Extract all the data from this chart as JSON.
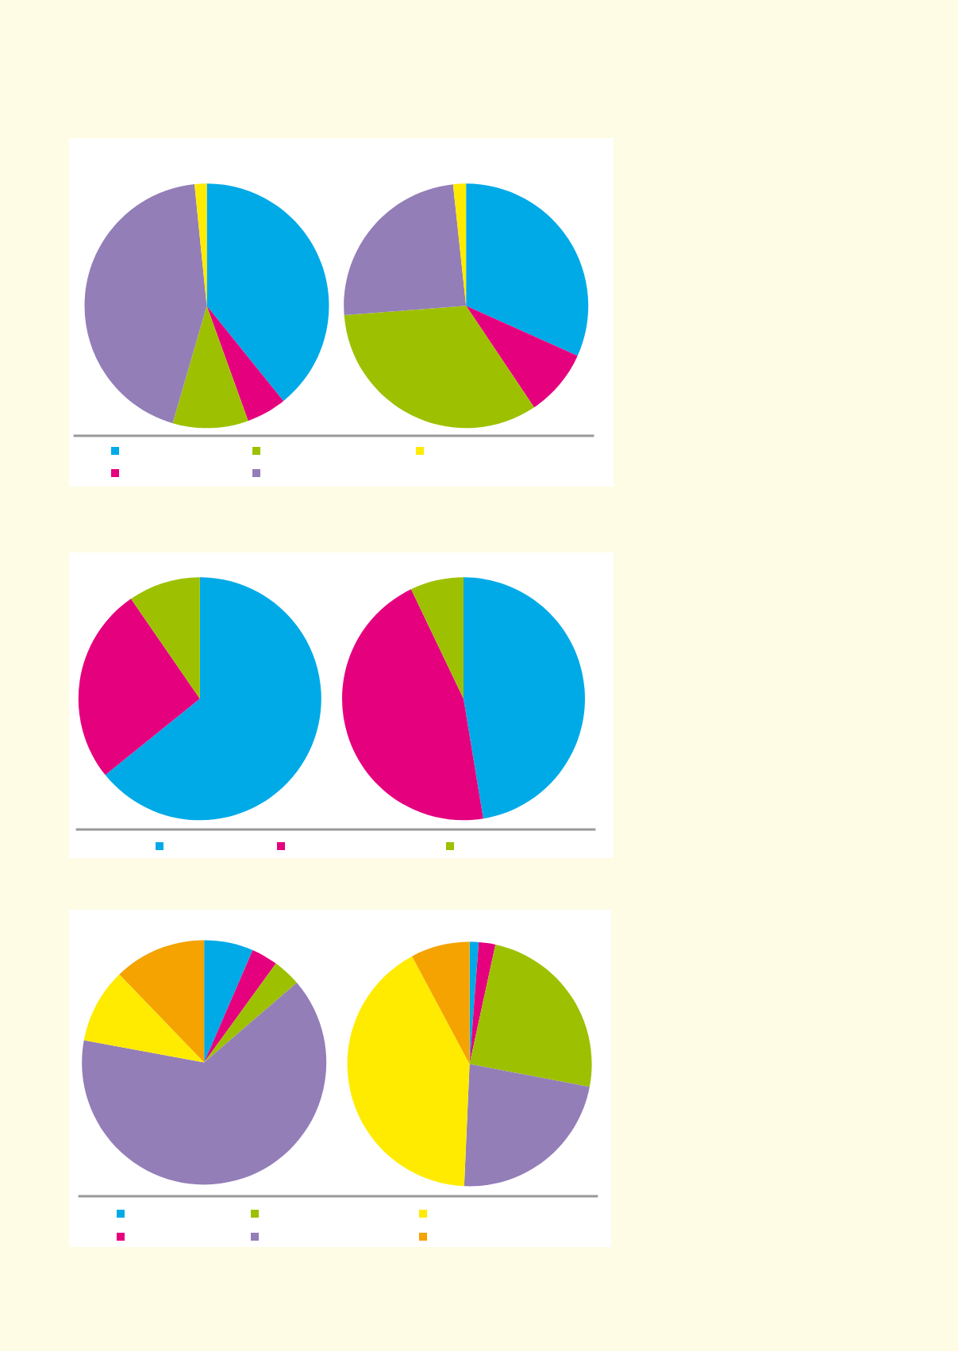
{
  "chart_data": [
    {
      "type": "pie",
      "categories": [
        null,
        null,
        null,
        null,
        null
      ],
      "values": [
        39.2,
        5.3,
        10.0,
        43.9,
        1.6
      ],
      "colors": [
        "#00aae7",
        "#e5007e",
        "#9dc100",
        "#937eb8",
        "#ffeb00"
      ]
    },
    {
      "type": "pie",
      "categories": [
        null,
        null,
        null,
        null,
        null
      ],
      "values": [
        31.7,
        8.9,
        33.2,
        24.5,
        1.7
      ],
      "colors": [
        "#00aae7",
        "#e5007e",
        "#9dc100",
        "#937eb8",
        "#ffeb00"
      ]
    },
    {
      "type": "pie",
      "categories": [
        null,
        null,
        null
      ],
      "values": [
        64.2,
        26.2,
        9.6
      ],
      "colors": [
        "#00aae7",
        "#e5007e",
        "#9dc100"
      ]
    },
    {
      "type": "pie",
      "categories": [
        null,
        null,
        null
      ],
      "values": [
        47.4,
        45.5,
        7.1
      ],
      "colors": [
        "#00aae7",
        "#e5007e",
        "#9dc100"
      ]
    },
    {
      "type": "pie",
      "categories": [
        null,
        null,
        null,
        null,
        null,
        null
      ],
      "values": [
        6.5,
        3.5,
        3.7,
        64.2,
        9.9,
        12.2
      ],
      "colors": [
        "#00aae7",
        "#e5007e",
        "#9dc100",
        "#937eb8",
        "#ffeb00",
        "#f4a300"
      ]
    },
    {
      "type": "pie",
      "categories": [
        null,
        null,
        null,
        null,
        null,
        null
      ],
      "values": [
        1.2,
        2.2,
        24.6,
        22.7,
        41.5,
        7.8
      ],
      "colors": [
        "#00aae7",
        "#e5007e",
        "#9dc100",
        "#937eb8",
        "#ffeb00",
        "#f4a300"
      ]
    }
  ]
}
